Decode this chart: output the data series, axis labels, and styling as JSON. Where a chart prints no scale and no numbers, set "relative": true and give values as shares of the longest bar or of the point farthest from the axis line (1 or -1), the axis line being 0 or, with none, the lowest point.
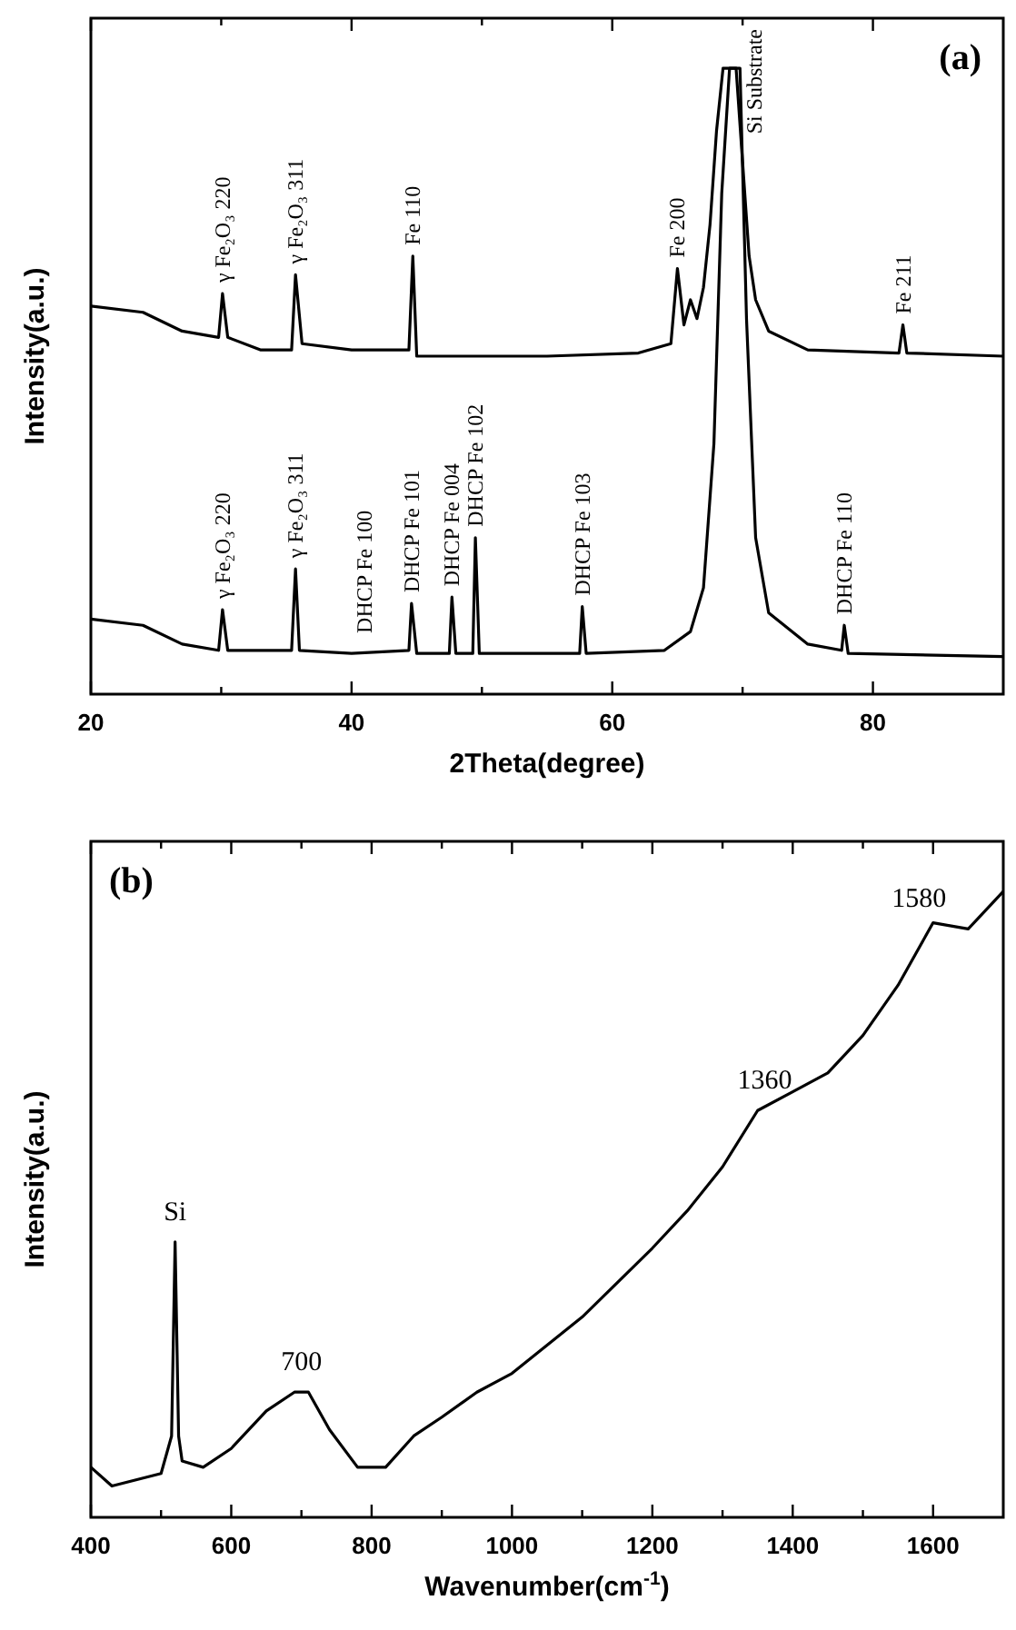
{
  "chart_data": [
    {
      "type": "line",
      "relative": true,
      "xlabel": "2Theta(degree)",
      "ylabel": "Intensity(a.u.)",
      "xlim": [
        20,
        90
      ],
      "xticks": [
        20,
        {
          "value": 30,
          "label": null
        },
        40,
        {
          "value": 50,
          "label": null
        },
        60,
        {
          "value": 70,
          "label": null
        },
        80
      ],
      "tick_labels": "x",
      "grid": false,
      "marker": "none",
      "line_style": "solid",
      "series": [
        {
          "color": "#000000",
          "x": [
            20,
            24,
            27,
            29.8,
            30.1,
            30.5,
            33,
            35.4,
            35.7,
            36.2,
            40,
            44.4,
            44.7,
            45,
            55,
            62,
            64.5,
            65,
            65.5,
            66,
            66.5,
            67,
            67.5,
            68,
            68.5,
            69.5,
            70,
            70.5,
            71,
            72,
            75,
            82,
            82.3,
            82.6,
            90
          ],
          "values": [
            0.62,
            0.61,
            0.58,
            0.57,
            0.64,
            0.57,
            0.55,
            0.55,
            0.67,
            0.56,
            0.55,
            0.55,
            0.7,
            0.54,
            0.54,
            0.545,
            0.56,
            0.68,
            0.59,
            0.63,
            0.6,
            0.65,
            0.75,
            0.9,
            1,
            1,
            0.85,
            0.7,
            0.63,
            0.58,
            0.55,
            0.545,
            0.59,
            0.545,
            0.54
          ]
        },
        {
          "color": "#000000",
          "x": [
            20,
            24,
            27,
            29.8,
            30.1,
            30.5,
            35.4,
            35.7,
            36,
            40,
            44.4,
            44.6,
            45,
            47.5,
            47.7,
            48,
            49.3,
            49.5,
            49.8,
            57.5,
            57.7,
            58,
            64,
            66,
            67,
            67.8,
            68.4,
            69,
            69.8,
            70.3,
            71,
            72,
            75,
            77.6,
            77.8,
            78.1,
            90
          ],
          "values": [
            0.12,
            0.11,
            0.08,
            0.07,
            0.135,
            0.07,
            0.07,
            0.2,
            0.07,
            0.065,
            0.07,
            0.145,
            0.065,
            0.065,
            0.155,
            0.065,
            0.065,
            0.25,
            0.065,
            0.065,
            0.14,
            0.065,
            0.07,
            0.1,
            0.17,
            0.4,
            0.8,
            1,
            1,
            0.6,
            0.25,
            0.13,
            0.08,
            0.07,
            0.11,
            0.065,
            0.06
          ]
        }
      ],
      "annotations": [
        "(a)",
        {
          "text": "γ Fe₂O₃ 220",
          "x": 30.1,
          "y": 0.64
        },
        {
          "text": "γ Fe₂O₃ 311",
          "x": 35.7,
          "y": 0.67
        },
        {
          "text": "Fe 110",
          "x": 44.7,
          "y": 0.7
        },
        {
          "text": "Fe 200",
          "x": 65,
          "y": 0.68
        },
        {
          "text": "Si Substrate",
          "x": 69.5,
          "y": 1
        },
        {
          "text": "Fe 211",
          "x": 82.3,
          "y": 0.59
        },
        {
          "text": "γ Fe₂O₃ 220",
          "x": 30.1,
          "y": 0.135
        },
        {
          "text": "γ Fe₂O₃ 311",
          "x": 35.7,
          "y": 0.2
        },
        {
          "text": "DHCP Fe 100",
          "x": 41,
          "y": 0.08
        },
        {
          "text": "DHCP Fe 101",
          "x": 44.6,
          "y": 0.145
        },
        {
          "text": "DHCP Fe 004",
          "x": 47.7,
          "y": 0.155
        },
        {
          "text": "DHCP Fe 102",
          "x": 49.5,
          "y": 0.25
        },
        {
          "text": "DHCP Fe 103",
          "x": 57.7,
          "y": 0.14
        },
        {
          "text": "DHCP Fe 110",
          "x": 77.8,
          "y": 0.11
        }
      ]
    },
    {
      "type": "line",
      "relative": true,
      "xlabel": "Wavenumber(cm$^{-1}$)",
      "ylabel": "Intensity(a.u.)",
      "xlim": [
        400,
        1700
      ],
      "xticks": [
        400,
        {
          "value": 500,
          "label": null
        },
        600,
        {
          "value": 700,
          "label": null
        },
        800,
        {
          "value": 900,
          "label": null
        },
        1000,
        {
          "value": 1100,
          "label": null
        },
        1200,
        {
          "value": 1300,
          "label": null
        },
        1400,
        {
          "value": 1500,
          "label": null
        },
        1600
      ],
      "tick_labels": "x",
      "grid": false,
      "marker": "none",
      "line_style": "solid",
      "series": [
        {
          "color": "#000000",
          "x": [
            400,
            430,
            500,
            515,
            520,
            525,
            530,
            560,
            600,
            650,
            690,
            710,
            740,
            780,
            820,
            860,
            900,
            950,
            1000,
            1100,
            1200,
            1250,
            1300,
            1350,
            1400,
            1450,
            1500,
            1550,
            1600,
            1650,
            1700
          ],
          "values": [
            0.08,
            0.05,
            0.07,
            0.13,
            0.44,
            0.13,
            0.09,
            0.08,
            0.11,
            0.17,
            0.2,
            0.2,
            0.14,
            0.08,
            0.08,
            0.13,
            0.16,
            0.2,
            0.23,
            0.32,
            0.43,
            0.49,
            0.56,
            0.65,
            0.68,
            0.71,
            0.77,
            0.85,
            0.95,
            0.94,
            1
          ]
        }
      ],
      "annotations": [
        "(b)",
        {
          "text": "Si",
          "x": 520,
          "y": 0.44
        },
        {
          "text": "700",
          "x": 700,
          "y": 0.2
        },
        {
          "text": "1360",
          "x": 1360,
          "y": 0.65
        },
        {
          "text": "1580",
          "x": 1580,
          "y": 0.94
        }
      ]
    }
  ]
}
